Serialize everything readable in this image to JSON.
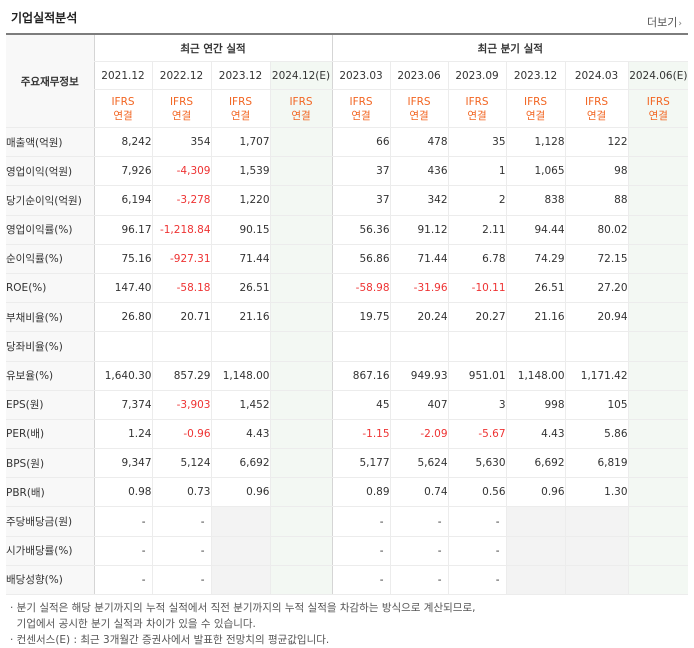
{
  "title": "기업실적분석",
  "more_label": "더보기",
  "header": {
    "metric_header": "주요재무정보",
    "annual_group": "최근 연간 실적",
    "quarter_group": "최근 분기 실적",
    "annual_periods": [
      "2021.12",
      "2022.12",
      "2023.12",
      "2024.12(E)"
    ],
    "quarter_periods": [
      "2023.03",
      "2023.06",
      "2023.09",
      "2023.12",
      "2024.03",
      "2024.06(E)"
    ],
    "ifrs_top": "IFRS",
    "ifrs_bottom": "연결"
  },
  "rows": [
    {
      "label": "매출액(억원)",
      "values": [
        "8,242",
        "354",
        "1,707",
        "",
        "66",
        "478",
        "35",
        "1,128",
        "122",
        ""
      ]
    },
    {
      "label": "영업이익(억원)",
      "values": [
        "7,926",
        "-4,309",
        "1,539",
        "",
        "37",
        "436",
        "1",
        "1,065",
        "98",
        ""
      ]
    },
    {
      "label": "당기순이익(억원)",
      "values": [
        "6,194",
        "-3,278",
        "1,220",
        "",
        "37",
        "342",
        "2",
        "838",
        "88",
        ""
      ]
    },
    {
      "label": "영업이익률(%)",
      "values": [
        "96.17",
        "-1,218.84",
        "90.15",
        "",
        "56.36",
        "91.12",
        "2.11",
        "94.44",
        "80.02",
        ""
      ]
    },
    {
      "label": "순이익률(%)",
      "values": [
        "75.16",
        "-927.31",
        "71.44",
        "",
        "56.86",
        "71.44",
        "6.78",
        "74.29",
        "72.15",
        ""
      ]
    },
    {
      "label": "ROE(%)",
      "values": [
        "147.40",
        "-58.18",
        "26.51",
        "",
        "-58.98",
        "-31.96",
        "-10.11",
        "26.51",
        "27.20",
        ""
      ]
    },
    {
      "label": "부채비율(%)",
      "values": [
        "26.80",
        "20.71",
        "21.16",
        "",
        "19.75",
        "20.24",
        "20.27",
        "21.16",
        "20.94",
        ""
      ]
    },
    {
      "label": "당좌비율(%)",
      "values": [
        "",
        "",
        "",
        "",
        "",
        "",
        "",
        "",
        "",
        ""
      ]
    },
    {
      "label": "유보율(%)",
      "values": [
        "1,640.30",
        "857.29",
        "1,148.00",
        "",
        "867.16",
        "949.93",
        "951.01",
        "1,148.00",
        "1,171.42",
        ""
      ]
    },
    {
      "label": "EPS(원)",
      "values": [
        "7,374",
        "-3,903",
        "1,452",
        "",
        "45",
        "407",
        "3",
        "998",
        "105",
        ""
      ]
    },
    {
      "label": "PER(배)",
      "values": [
        "1.24",
        "-0.96",
        "4.43",
        "",
        "-1.15",
        "-2.09",
        "-5.67",
        "4.43",
        "5.86",
        ""
      ]
    },
    {
      "label": "BPS(원)",
      "values": [
        "9,347",
        "5,124",
        "6,692",
        "",
        "5,177",
        "5,624",
        "5,630",
        "6,692",
        "6,819",
        ""
      ]
    },
    {
      "label": "PBR(배)",
      "values": [
        "0.98",
        "0.73",
        "0.96",
        "",
        "0.89",
        "0.74",
        "0.56",
        "0.96",
        "1.30",
        ""
      ]
    },
    {
      "label": "주당배당금(원)",
      "values": [
        "-",
        "-",
        "",
        "",
        "-",
        "-",
        "-",
        "",
        "",
        ""
      ]
    },
    {
      "label": "시가배당률(%)",
      "values": [
        "-",
        "-",
        "",
        "",
        "-",
        "-",
        "-",
        "",
        "",
        ""
      ]
    },
    {
      "label": "배당성향(%)",
      "values": [
        "-",
        "-",
        "",
        "",
        "-",
        "-",
        "-",
        "",
        "",
        ""
      ]
    }
  ],
  "notes": [
    "· 분기 실적은 해당 분기까지의 누적 실적에서 직전 분기까지의 누적 실적을 차감하는 방식으로 계산되므로,",
    "  기업에서 공시한 분기 실적과 차이가 있을 수 있습니다.",
    "· 컨센서스(E) : 최근 3개월간 증권사에서 발표한 전망치의 평균값입니다."
  ],
  "colors": {
    "negative": "#ee3333",
    "ifrs": "#f26522",
    "estimate_bg": "#f3f8f3"
  }
}
